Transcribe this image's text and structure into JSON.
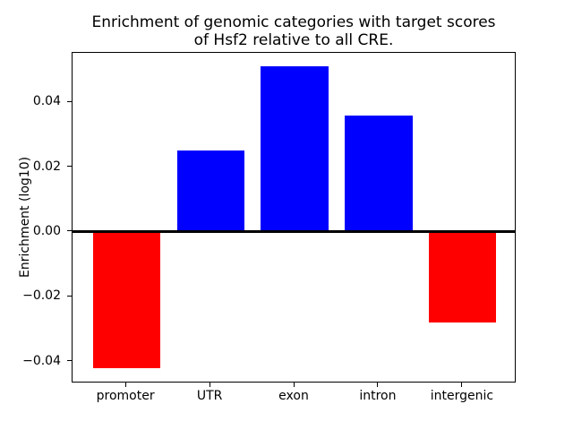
{
  "chart_data": {
    "type": "bar",
    "title": "Enrichment of genomic categories with target scores\nof Hsf2 relative to all CRE.",
    "title_lines": [
      "Enrichment of genomic categories with target scores",
      "of Hsf2 relative to all CRE."
    ],
    "ylabel": "Enrichment (log10)",
    "xlabel": "",
    "categories": [
      "promoter",
      "UTR",
      "exon",
      "intron",
      "intergenic"
    ],
    "values": [
      -0.042,
      0.025,
      0.051,
      0.036,
      -0.028
    ],
    "positive_color": "#0000ff",
    "negative_color": "#ff0000",
    "bar_colors": [
      "#ff0000",
      "#0000ff",
      "#0000ff",
      "#0000ff",
      "#ff0000"
    ],
    "yticks": [
      -0.04,
      -0.02,
      0.0,
      0.02,
      0.04
    ],
    "ytick_labels": [
      "−0.04",
      "−0.02",
      "0.00",
      "0.02",
      "0.04"
    ],
    "ylim": [
      -0.0467,
      0.0552
    ],
    "xlim": [
      -0.64,
      4.64
    ],
    "bar_width": 0.8,
    "zero_line": true,
    "grid": false,
    "legend": null,
    "text_color": "#000000",
    "spine_color": "#000000",
    "background": "#ffffff"
  }
}
